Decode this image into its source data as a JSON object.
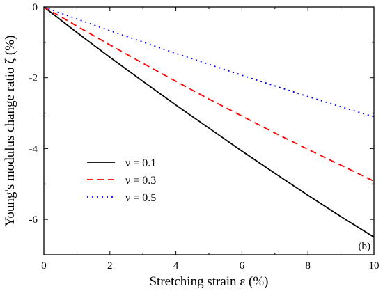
{
  "chart_data": {
    "type": "line",
    "xlabel": "Stretching strain ε (%)",
    "ylabel": "Young's modulus change ratio ζ (%)",
    "xlim": [
      0,
      10
    ],
    "ylim": [
      -7,
      0
    ],
    "xticks": [
      0,
      2,
      4,
      6,
      8,
      10
    ],
    "yticks": [
      0,
      -2,
      -4,
      -6
    ],
    "grid": false,
    "legend_position": "left-middle",
    "panel_label": "(b)",
    "series": [
      {
        "name": "ν = 0.1",
        "color": "#000000",
        "style": "solid",
        "x": [
          0,
          1,
          2,
          3,
          4,
          5,
          6,
          7,
          8,
          9,
          10
        ],
        "y": [
          0,
          -0.72,
          -1.42,
          -2.1,
          -2.77,
          -3.42,
          -4.07,
          -4.7,
          -5.32,
          -5.92,
          -6.5
        ]
      },
      {
        "name": "ν = 0.3",
        "color": "#ff0000",
        "style": "dashed",
        "x": [
          0,
          1,
          2,
          3,
          4,
          5,
          6,
          7,
          8,
          9,
          10
        ],
        "y": [
          0,
          -0.54,
          -1.07,
          -1.59,
          -2.1,
          -2.6,
          -3.08,
          -3.56,
          -4.02,
          -4.47,
          -4.92
        ]
      },
      {
        "name": "ν = 0.5",
        "color": "#0000ff",
        "style": "dotted",
        "x": [
          0,
          1,
          2,
          3,
          4,
          5,
          6,
          7,
          8,
          9,
          10
        ],
        "y": [
          0,
          -0.34,
          -0.67,
          -0.99,
          -1.31,
          -1.62,
          -1.93,
          -2.23,
          -2.53,
          -2.82,
          -3.1
        ]
      }
    ]
  }
}
